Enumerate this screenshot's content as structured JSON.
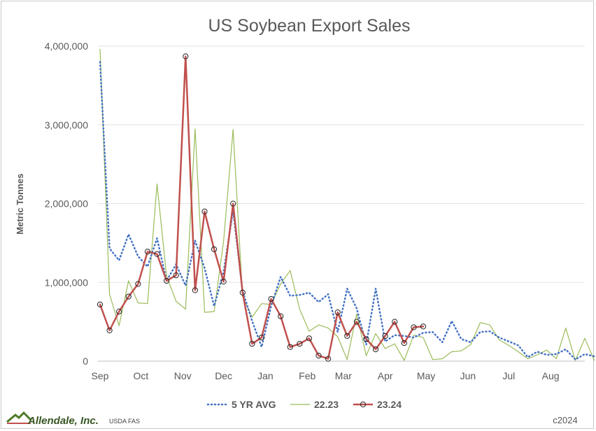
{
  "chart_data": {
    "type": "line",
    "title": "US Soybean Export Sales",
    "ylabel": "Metric Tonnes",
    "xlabel": "",
    "ylim": [
      0,
      4000000
    ],
    "yticks": [
      0,
      1000000,
      2000000,
      3000000,
      4000000
    ],
    "ytick_labels": [
      "0",
      "1,000,000",
      "2,000,000",
      "3,000,000",
      "4,000,000"
    ],
    "x_range_weeks": [
      0,
      51
    ],
    "xtick_labels": [
      {
        "label": "Sep",
        "week": 0
      },
      {
        "label": "Oct",
        "week": 4.3
      },
      {
        "label": "Nov",
        "week": 8.7
      },
      {
        "label": "Dec",
        "week": 13.0
      },
      {
        "label": "Jan",
        "week": 17.4
      },
      {
        "label": "Feb",
        "week": 21.8
      },
      {
        "label": "Mar",
        "week": 25.6
      },
      {
        "label": "Apr",
        "week": 30.0
      },
      {
        "label": "May",
        "week": 34.3
      },
      {
        "label": "Jun",
        "week": 38.7
      },
      {
        "label": "Jul",
        "week": 43.0
      },
      {
        "label": "Aug",
        "week": 47.4
      }
    ],
    "grid": "horizontal",
    "legend_position": "bottom",
    "series": [
      {
        "name": "5 YR AVG",
        "color": "#4472c4",
        "style": "dotted",
        "values": [
          3800000,
          1430000,
          1280000,
          1610000,
          1330000,
          1200000,
          1560000,
          1020000,
          1230000,
          960000,
          1530000,
          1180000,
          700000,
          1130000,
          1910000,
          890000,
          510000,
          180000,
          700000,
          1070000,
          830000,
          840000,
          870000,
          750000,
          850000,
          370000,
          920000,
          670000,
          210000,
          920000,
          250000,
          330000,
          320000,
          300000,
          360000,
          370000,
          240000,
          510000,
          280000,
          240000,
          370000,
          380000,
          300000,
          250000,
          200000,
          50000,
          120000,
          80000,
          90000,
          150000,
          20000,
          90000,
          60000
        ]
      },
      {
        "name": "22.23",
        "color": "#9bbb59",
        "style": "solid",
        "values": [
          3960000,
          850000,
          450000,
          1020000,
          740000,
          730000,
          2250000,
          1080000,
          760000,
          660000,
          2950000,
          620000,
          630000,
          1520000,
          2940000,
          820000,
          560000,
          730000,
          720000,
          980000,
          1150000,
          660000,
          380000,
          460000,
          420000,
          310000,
          20000,
          600000,
          70000,
          350000,
          160000,
          220000,
          10000,
          330000,
          300000,
          20000,
          30000,
          120000,
          130000,
          210000,
          490000,
          460000,
          270000,
          200000,
          120000,
          30000,
          80000,
          140000,
          30000,
          420000,
          10000,
          290000,
          10000
        ]
      },
      {
        "name": "23.24",
        "color": "#c0504d",
        "style": "solid-markers",
        "values": [
          720000,
          390000,
          630000,
          820000,
          980000,
          1390000,
          1360000,
          1020000,
          1090000,
          3870000,
          900000,
          1900000,
          1420000,
          1010000,
          2000000,
          870000,
          220000,
          300000,
          790000,
          570000,
          180000,
          220000,
          290000,
          70000,
          30000,
          620000,
          320000,
          500000,
          280000,
          150000,
          320000,
          500000,
          230000,
          430000,
          440000
        ]
      }
    ]
  },
  "footer": {
    "logo_text": "Allendale, Inc.",
    "source": "USDA FAS",
    "copyright": "c2024"
  }
}
